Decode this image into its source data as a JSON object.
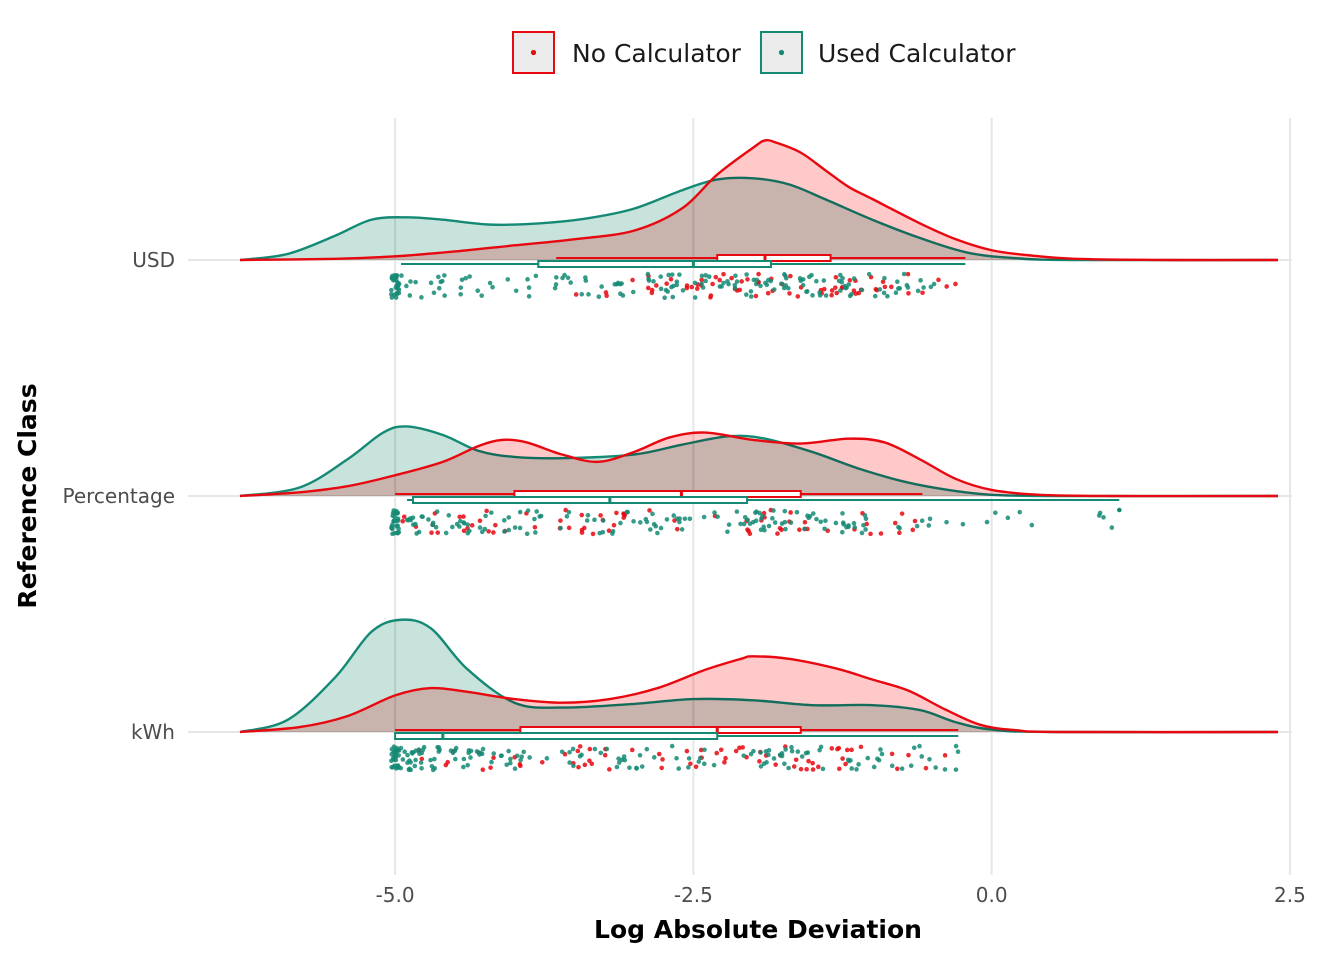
{
  "chart_data": {
    "type": "raincloud",
    "title": "",
    "xlabel": "Log Absolute Deviation",
    "ylabel": "Reference Class",
    "xlim": [
      -6.3,
      2.4
    ],
    "x_ticks": [
      -5.0,
      -2.5,
      0.0,
      2.5
    ],
    "x_tick_labels": [
      "-5.0",
      "-2.5",
      "0.0",
      "2.5"
    ],
    "grid": true,
    "legend_position": "top",
    "categories": [
      "USD",
      "Percentage",
      "kWh"
    ],
    "colors": {
      "No Calculator": "#e8080f",
      "Used Calculator": "#148a74"
    },
    "series": [
      {
        "name": "No Calculator",
        "fill": "#ffc9c9",
        "stroke": "#e8080f",
        "groups": {
          "USD": {
            "density": [
              [
                -6.3,
                0.0
              ],
              [
                -5.5,
                0.01
              ],
              [
                -5.0,
                0.03
              ],
              [
                -4.5,
                0.07
              ],
              [
                -4.0,
                0.12
              ],
              [
                -3.5,
                0.17
              ],
              [
                -3.0,
                0.24
              ],
              [
                -2.6,
                0.42
              ],
              [
                -2.3,
                0.7
              ],
              [
                -2.0,
                0.92
              ],
              [
                -1.9,
                0.98
              ],
              [
                -1.8,
                0.96
              ],
              [
                -1.6,
                0.88
              ],
              [
                -1.4,
                0.74
              ],
              [
                -1.2,
                0.6
              ],
              [
                -1.0,
                0.5
              ],
              [
                -0.6,
                0.3
              ],
              [
                -0.3,
                0.17
              ],
              [
                0.0,
                0.08
              ],
              [
                0.3,
                0.04
              ],
              [
                0.7,
                0.01
              ],
              [
                1.5,
                0.0
              ],
              [
                2.4,
                0.0
              ]
            ],
            "box": {
              "min": -3.65,
              "q1": -2.3,
              "median": -1.9,
              "q3": -1.35,
              "max": -0.22
            }
          },
          "Percentage": {
            "density": [
              [
                -6.3,
                0.0
              ],
              [
                -5.8,
                0.03
              ],
              [
                -5.4,
                0.08
              ],
              [
                -5.0,
                0.17
              ],
              [
                -4.6,
                0.28
              ],
              [
                -4.3,
                0.41
              ],
              [
                -4.1,
                0.46
              ],
              [
                -3.9,
                0.44
              ],
              [
                -3.6,
                0.34
              ],
              [
                -3.3,
                0.28
              ],
              [
                -3.0,
                0.36
              ],
              [
                -2.7,
                0.48
              ],
              [
                -2.4,
                0.52
              ],
              [
                -2.0,
                0.46
              ],
              [
                -1.6,
                0.43
              ],
              [
                -1.2,
                0.47
              ],
              [
                -0.9,
                0.44
              ],
              [
                -0.6,
                0.3
              ],
              [
                -0.3,
                0.14
              ],
              [
                0.0,
                0.05
              ],
              [
                0.4,
                0.01
              ],
              [
                1.0,
                0.0
              ],
              [
                2.4,
                0.0
              ]
            ],
            "box": {
              "min": -5.0,
              "q1": -4.0,
              "median": -2.6,
              "q3": -1.6,
              "max": -0.58
            }
          },
          "kWh": {
            "density": [
              [
                -6.3,
                0.0
              ],
              [
                -5.8,
                0.04
              ],
              [
                -5.4,
                0.13
              ],
              [
                -5.0,
                0.3
              ],
              [
                -4.7,
                0.36
              ],
              [
                -4.4,
                0.33
              ],
              [
                -4.0,
                0.27
              ],
              [
                -3.6,
                0.24
              ],
              [
                -3.2,
                0.27
              ],
              [
                -2.8,
                0.36
              ],
              [
                -2.4,
                0.51
              ],
              [
                -2.1,
                0.6
              ],
              [
                -2.0,
                0.62
              ],
              [
                -1.7,
                0.6
              ],
              [
                -1.3,
                0.52
              ],
              [
                -1.0,
                0.43
              ],
              [
                -0.7,
                0.34
              ],
              [
                -0.4,
                0.19
              ],
              [
                -0.1,
                0.06
              ],
              [
                0.2,
                0.015
              ],
              [
                0.6,
                0.0
              ],
              [
                2.4,
                0.0
              ]
            ],
            "box": {
              "min": -5.0,
              "q1": -3.95,
              "median": -2.3,
              "q3": -1.6,
              "max": -0.28
            }
          }
        }
      },
      {
        "name": "Used Calculator",
        "fill": "#c8e3dc",
        "stroke": "#148a74",
        "groups": {
          "USD": {
            "density": [
              [
                -6.3,
                0.0
              ],
              [
                -5.9,
                0.05
              ],
              [
                -5.5,
                0.2
              ],
              [
                -5.2,
                0.33
              ],
              [
                -4.9,
                0.35
              ],
              [
                -4.6,
                0.33
              ],
              [
                -4.2,
                0.29
              ],
              [
                -3.8,
                0.3
              ],
              [
                -3.4,
                0.34
              ],
              [
                -3.0,
                0.42
              ],
              [
                -2.6,
                0.57
              ],
              [
                -2.3,
                0.66
              ],
              [
                -2.0,
                0.67
              ],
              [
                -1.7,
                0.62
              ],
              [
                -1.4,
                0.5
              ],
              [
                -1.0,
                0.33
              ],
              [
                -0.6,
                0.18
              ],
              [
                -0.2,
                0.06
              ],
              [
                0.2,
                0.015
              ],
              [
                0.7,
                0.0
              ],
              [
                2.4,
                0.0
              ]
            ],
            "box": {
              "min": -4.95,
              "q1": -3.8,
              "median": -2.5,
              "q3": -1.85,
              "max": -0.22
            }
          },
          "Percentage": {
            "density": [
              [
                -6.3,
                0.0
              ],
              [
                -5.8,
                0.07
              ],
              [
                -5.4,
                0.3
              ],
              [
                -5.1,
                0.52
              ],
              [
                -4.9,
                0.57
              ],
              [
                -4.6,
                0.5
              ],
              [
                -4.3,
                0.37
              ],
              [
                -4.0,
                0.32
              ],
              [
                -3.6,
                0.31
              ],
              [
                -3.0,
                0.34
              ],
              [
                -2.6,
                0.42
              ],
              [
                -2.2,
                0.49
              ],
              [
                -1.9,
                0.47
              ],
              [
                -1.5,
                0.36
              ],
              [
                -1.1,
                0.22
              ],
              [
                -0.7,
                0.11
              ],
              [
                -0.3,
                0.04
              ],
              [
                0.0,
                0.01
              ],
              [
                0.5,
                0.0
              ],
              [
                2.4,
                0.0
              ]
            ],
            "box": {
              "min": -4.9,
              "q1": -4.85,
              "median": -3.2,
              "q3": -2.05,
              "max": 1.07
            }
          },
          "kWh": {
            "density": [
              [
                -6.3,
                0.0
              ],
              [
                -5.9,
                0.1
              ],
              [
                -5.5,
                0.45
              ],
              [
                -5.2,
                0.82
              ],
              [
                -4.95,
                0.92
              ],
              [
                -4.7,
                0.85
              ],
              [
                -4.4,
                0.52
              ],
              [
                -4.0,
                0.24
              ],
              [
                -3.6,
                0.2
              ],
              [
                -3.0,
                0.23
              ],
              [
                -2.5,
                0.27
              ],
              [
                -2.0,
                0.26
              ],
              [
                -1.5,
                0.22
              ],
              [
                -1.0,
                0.22
              ],
              [
                -0.6,
                0.18
              ],
              [
                -0.3,
                0.08
              ],
              [
                0.0,
                0.02
              ],
              [
                0.5,
                0.0
              ],
              [
                2.4,
                0.0
              ]
            ],
            "box": {
              "min": -5.0,
              "q1": -5.0,
              "median": -4.6,
              "q3": -2.3,
              "max": -0.28
            }
          }
        }
      }
    ]
  }
}
